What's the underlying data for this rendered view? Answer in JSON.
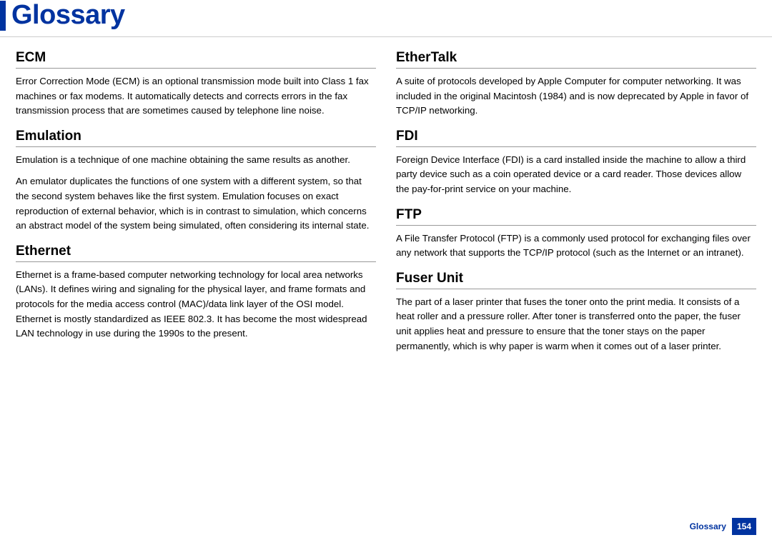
{
  "page": {
    "title": "Glossary",
    "footer_label": "Glossary",
    "page_number": "154",
    "accent_color": "#0033a0"
  },
  "left": {
    "t1": {
      "heading": "ECM",
      "p1": "Error Correction Mode (ECM) is an optional transmission mode built into Class 1 fax machines or fax modems. It automatically detects and corrects errors in the fax transmission process that are sometimes caused by telephone line noise."
    },
    "t2": {
      "heading": "Emulation",
      "p1": "Emulation is a technique of one machine obtaining the same results as another.",
      "p2": "An emulator duplicates the functions of one system with a different system, so that the second system behaves like the first system. Emulation focuses on exact reproduction of external behavior, which is in contrast to simulation, which concerns an abstract model of the system being simulated, often considering its internal state."
    },
    "t3": {
      "heading": "Ethernet",
      "p1": "Ethernet is a frame-based computer networking technology for local area networks (LANs). It defines wiring and signaling for the physical layer, and frame formats and protocols for the media access control (MAC)/data link layer of the OSI model. Ethernet is mostly standardized as IEEE 802.3. It has become the most widespread LAN technology in use during the 1990s to the present."
    }
  },
  "right": {
    "t1": {
      "heading": "EtherTalk",
      "p1": "A suite of protocols developed by Apple Computer for computer networking. It was included in the original Macintosh (1984) and is now deprecated by Apple in favor of TCP/IP networking."
    },
    "t2": {
      "heading": "FDI",
      "p1": "Foreign Device Interface (FDI) is a card installed inside the machine to allow a third party device such as a coin operated device or a card reader. Those devices allow the pay-for-print service on your machine."
    },
    "t3": {
      "heading": "FTP",
      "p1": "A File Transfer Protocol (FTP) is a commonly used protocol for exchanging files over any network that supports the TCP/IP protocol (such as the Internet or an intranet)."
    },
    "t4": {
      "heading": "Fuser Unit",
      "p1": "The part of a laser printer that fuses the toner onto the print media. It consists of a heat roller and a pressure roller. After toner is transferred onto the paper, the fuser unit applies heat and pressure to ensure that the toner stays on the paper permanently, which is why paper is warm when it comes out of a laser printer."
    }
  }
}
